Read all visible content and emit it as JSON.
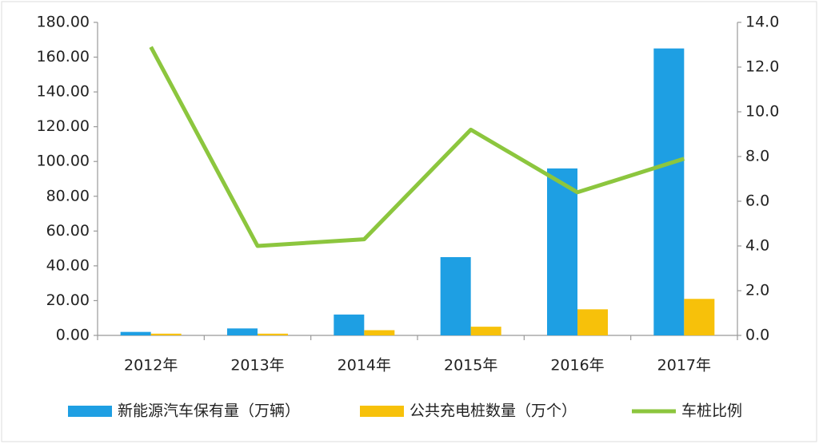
{
  "chart_data": {
    "type": "bar-line",
    "categories": [
      "2012年",
      "2013年",
      "2014年",
      "2015年",
      "2016年",
      "2017年"
    ],
    "series": [
      {
        "name": "新能源汽车保有量（万辆）",
        "color": "#1e9fe3",
        "type": "bar",
        "values": [
          2,
          4,
          12,
          45,
          96,
          165
        ]
      },
      {
        "name": "公共充电桩数量（万个）",
        "color": "#f7c10a",
        "type": "bar",
        "values": [
          1,
          1,
          3,
          5,
          15,
          21
        ]
      },
      {
        "name": "车桩比例",
        "color": "#8cc63e",
        "type": "line",
        "axis": "y2",
        "values": [
          12.9,
          4.0,
          4.3,
          9.2,
          6.4,
          7.9
        ]
      }
    ],
    "ylim": [
      0,
      180
    ],
    "yticks": [
      {
        "value": 0,
        "label": "0.00"
      },
      {
        "value": 20,
        "label": "20.00"
      },
      {
        "value": 40,
        "label": "40.00"
      },
      {
        "value": 60,
        "label": "60.00"
      },
      {
        "value": 80,
        "label": "80.00"
      },
      {
        "value": 100,
        "label": "100.00"
      },
      {
        "value": 120,
        "label": "120.00"
      },
      {
        "value": 140,
        "label": "140.00"
      },
      {
        "value": 160,
        "label": "160.00"
      },
      {
        "value": 180,
        "label": "180.00"
      }
    ],
    "y2lim": [
      0,
      14
    ],
    "y2ticks": [
      {
        "value": 0,
        "label": "0.0"
      },
      {
        "value": 2,
        "label": "2.0"
      },
      {
        "value": 4,
        "label": "4.0"
      },
      {
        "value": 6,
        "label": "6.0"
      },
      {
        "value": 8,
        "label": "8.0"
      },
      {
        "value": 10,
        "label": "10.0"
      },
      {
        "value": 12,
        "label": "12.0"
      },
      {
        "value": 14,
        "label": "14.0"
      }
    ],
    "grid": false,
    "legend": "bottom"
  }
}
